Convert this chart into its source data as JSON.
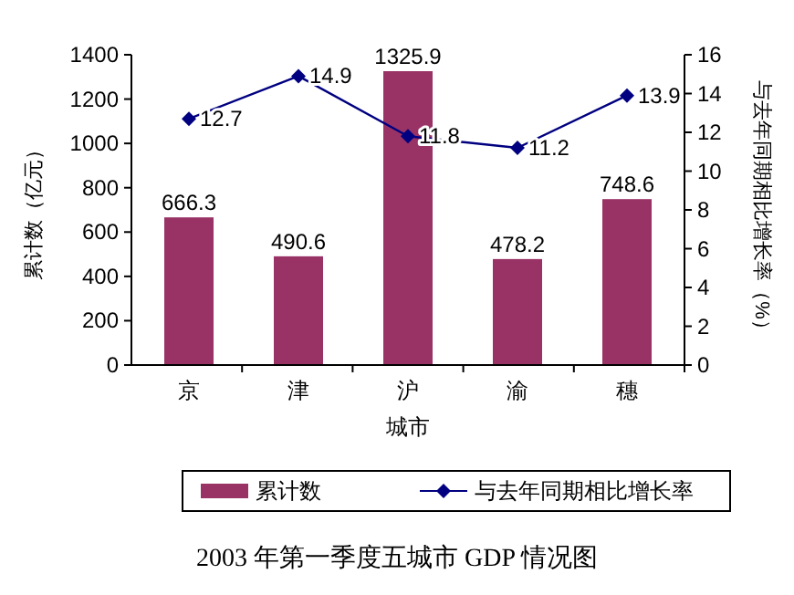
{
  "chart_data": {
    "type": "bar",
    "title": "2003 年第一季度五城市 GDP 情况图",
    "xlabel": "城市",
    "ylabel": "累计数（亿元）",
    "y2label": "与去年同期相比增长率（%）",
    "categories": [
      "京",
      "津",
      "沪",
      "渝",
      "穗"
    ],
    "series": [
      {
        "name": "累计数",
        "color": "#993366",
        "values": [
          666.3,
          490.6,
          1325.9,
          478.2,
          748.6
        ]
      },
      {
        "name": "与去年同期相比增长率",
        "type": "line",
        "axis": "y2",
        "color": "#000080",
        "marker": "diamond",
        "values": [
          12.7,
          14.9,
          11.8,
          11.2,
          13.9
        ]
      }
    ],
    "ylim": [
      0,
      1400
    ],
    "yticks": [
      0,
      200,
      400,
      600,
      800,
      1000,
      1200,
      1400
    ],
    "y2lim": [
      0,
      16
    ],
    "y2ticks": [
      0,
      2,
      4,
      6,
      8,
      10,
      12,
      14,
      16
    ],
    "data_labels": true,
    "legend": "bottom",
    "grid": false
  }
}
